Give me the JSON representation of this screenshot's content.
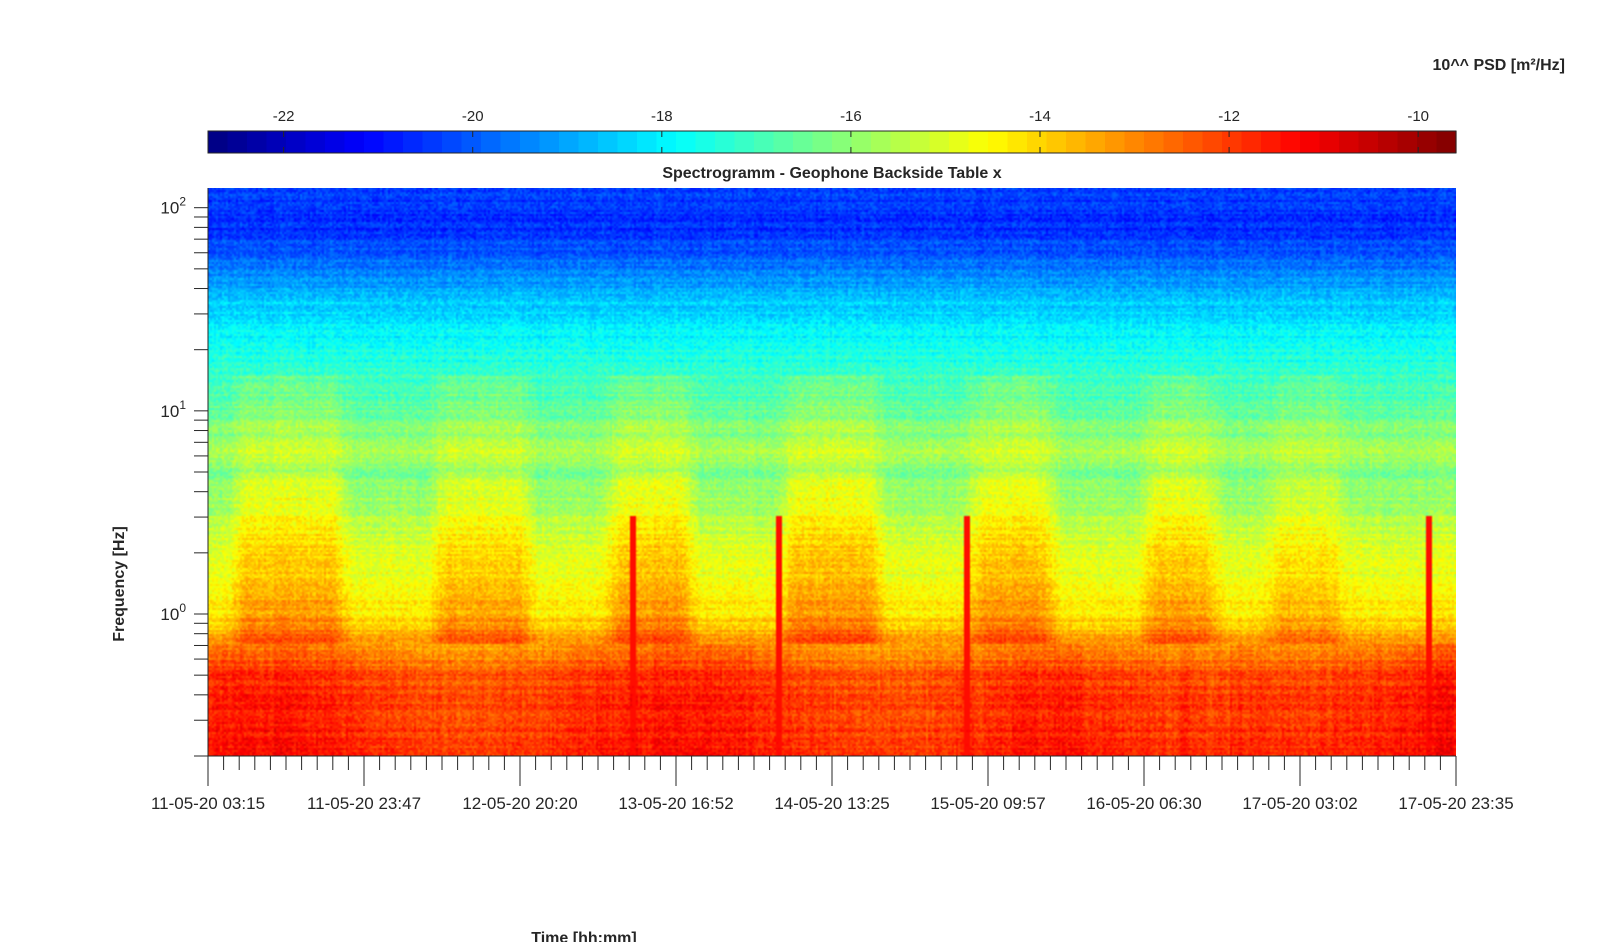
{
  "chart_data": {
    "type": "heatmap",
    "title": "Spectrogramm - Geophone Backside Table x",
    "xlabel": "Time [hh:mm]",
    "ylabel": "Frequency [Hz]",
    "colorbar_label": "10^^ PSD [m²/Hz]",
    "colorbar_ticks": [
      -22,
      -20,
      -18,
      -16,
      -14,
      -12,
      -10
    ],
    "colorbar_range": [
      -22.8,
      -9.6
    ],
    "colormap": "jet",
    "y_scale": "log",
    "y_range_hz": [
      0.2,
      125
    ],
    "y_tick_values": [
      1,
      10,
      100
    ],
    "y_tick_labels": [
      "10",
      "10",
      "10"
    ],
    "y_tick_exponents": [
      "0",
      "1",
      "2"
    ],
    "x_range_labels": [
      "11-05-20 03:15",
      "17-05-20 23:35"
    ],
    "x_tick_labels": [
      "11-05-20 03:15",
      "11-05-20 23:47",
      "12-05-20 20:20",
      "13-05-20 16:52",
      "14-05-20 13:25",
      "15-05-20 09:57",
      "16-05-20 06:30",
      "17-05-20 03:02",
      "17-05-20 23:35"
    ],
    "psd_profile_by_frequency": [
      {
        "hz": 0.2,
        "log_psd": -11.7
      },
      {
        "hz": 0.3,
        "log_psd": -11.8
      },
      {
        "hz": 0.5,
        "log_psd": -12.1
      },
      {
        "hz": 0.7,
        "log_psd": -13.2
      },
      {
        "hz": 1.0,
        "log_psd": -14.3
      },
      {
        "hz": 2.0,
        "log_psd": -15.0
      },
      {
        "hz": 3.0,
        "log_psd": -15.5
      },
      {
        "hz": 5.0,
        "log_psd": -16.3
      },
      {
        "hz": 6.0,
        "log_psd": -15.6
      },
      {
        "hz": 10.0,
        "log_psd": -16.6
      },
      {
        "hz": 20.0,
        "log_psd": -17.6
      },
      {
        "hz": 35.0,
        "log_psd": -18.5
      },
      {
        "hz": 50.0,
        "log_psd": -19.6
      },
      {
        "hz": 80.0,
        "log_psd": -20.6
      },
      {
        "hz": 125.0,
        "log_psd": -20.4
      }
    ],
    "activity_episodes_fraction_of_time": [
      {
        "start": 0.03,
        "end": 0.1,
        "strength": 0.9
      },
      {
        "start": 0.19,
        "end": 0.25,
        "strength": 0.8
      },
      {
        "start": 0.33,
        "end": 0.38,
        "strength": 1.0
      },
      {
        "start": 0.47,
        "end": 0.53,
        "strength": 1.0
      },
      {
        "start": 0.62,
        "end": 0.67,
        "strength": 1.0
      },
      {
        "start": 0.76,
        "end": 0.8,
        "strength": 0.9
      },
      {
        "start": 0.86,
        "end": 0.9,
        "strength": 0.6
      }
    ],
    "transient_spikes_fraction_of_time": [
      0.34,
      0.458,
      0.608,
      0.979
    ],
    "colors": {
      "jet_stops": [
        "#00008f",
        "#0000ff",
        "#00ffff",
        "#ffff00",
        "#ff0000",
        "#800000"
      ]
    }
  }
}
